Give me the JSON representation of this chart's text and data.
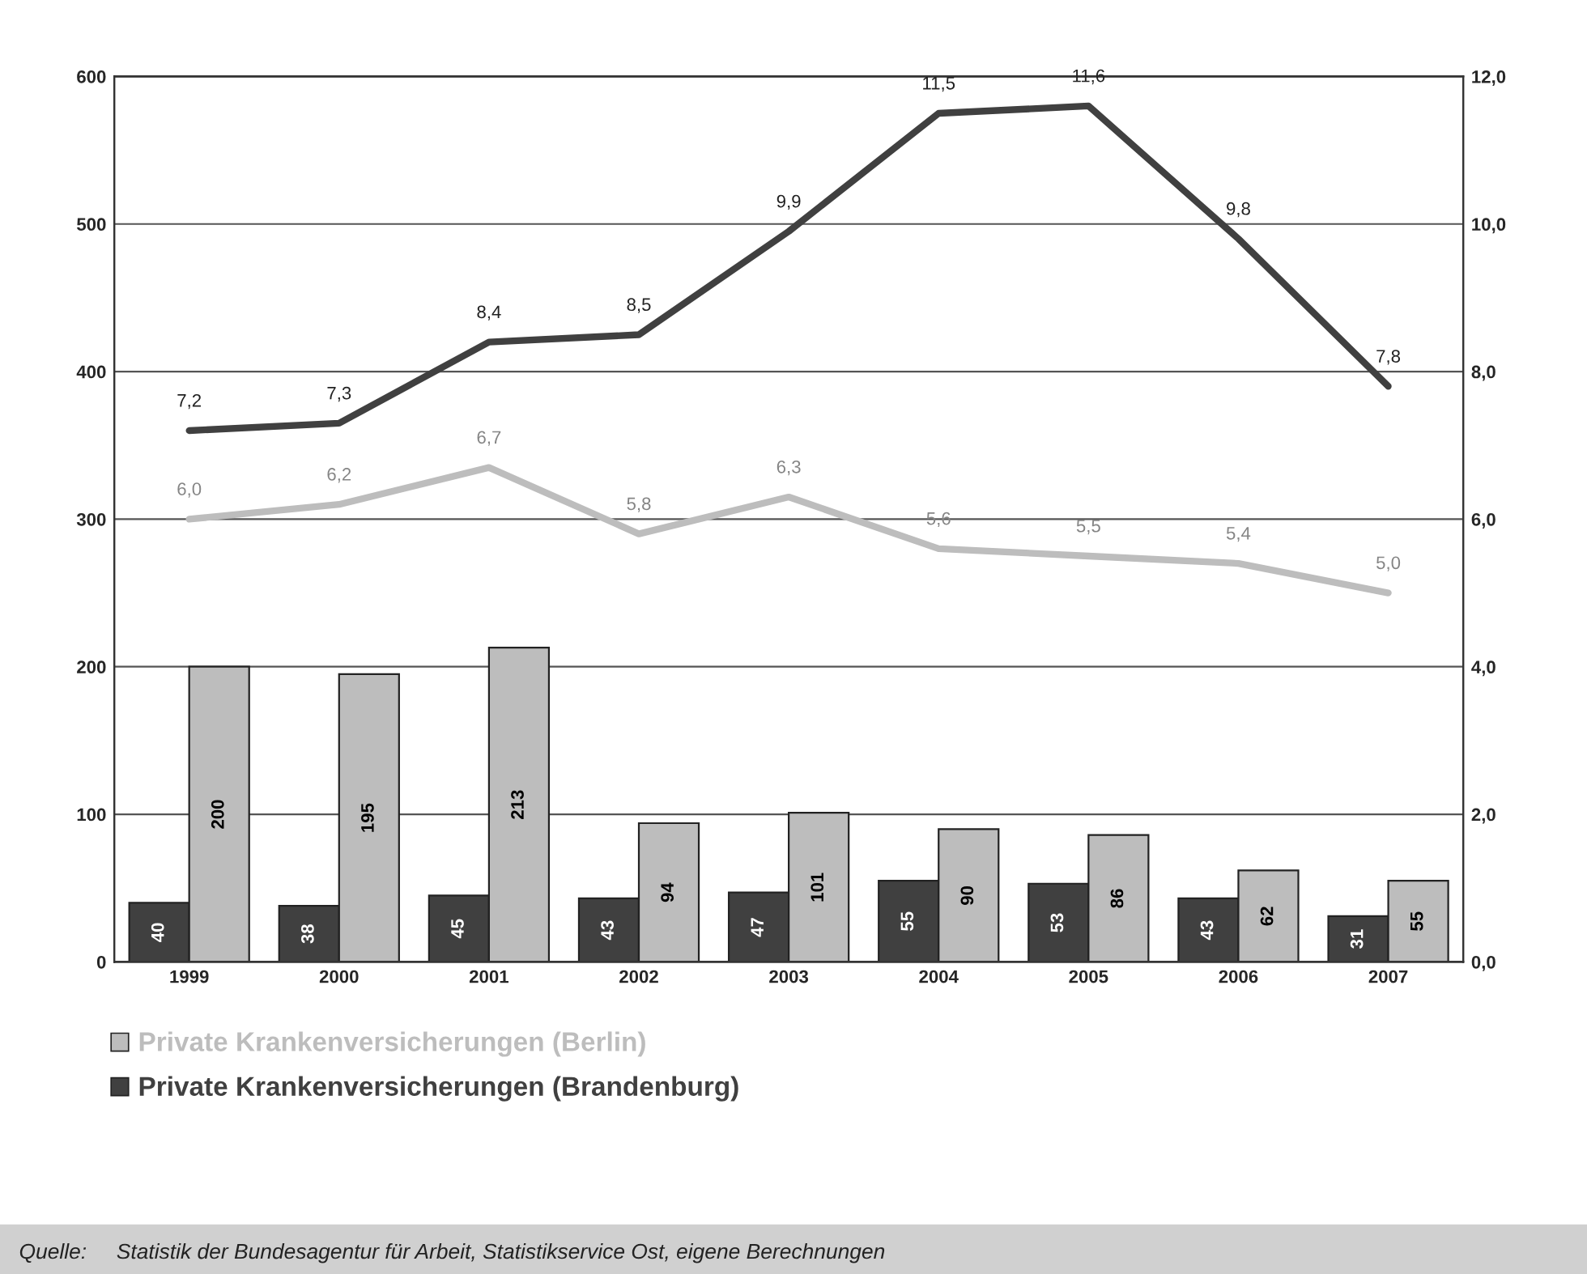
{
  "chart_data": {
    "type": "bar",
    "categories": [
      "1999",
      "2000",
      "2001",
      "2002",
      "2003",
      "2004",
      "2005",
      "2006",
      "2007"
    ],
    "series": [
      {
        "name": "Private Krankenversicherungen (Brandenburg)",
        "color": "#404040",
        "values": [
          40,
          38,
          45,
          43,
          47,
          55,
          53,
          43,
          31
        ],
        "value_labels": [
          "40",
          "38",
          "45",
          "43",
          "47",
          "55",
          "53",
          "43",
          "31"
        ]
      },
      {
        "name": "Private Krankenversicherungen (Berlin)",
        "color": "#bdbdbd",
        "values": [
          200,
          195,
          213,
          94,
          101,
          90,
          86,
          62,
          55
        ],
        "value_labels": [
          "200",
          "195",
          "213",
          "94",
          "101",
          "90",
          "86",
          "62",
          "55"
        ]
      },
      {
        "type": "line",
        "axis": "y2",
        "color": "#404040",
        "values": [
          7.2,
          7.3,
          8.4,
          8.5,
          9.9,
          11.5,
          11.6,
          9.8,
          7.8
        ],
        "value_labels": [
          "7,2",
          "7,3",
          "8,4",
          "8,5",
          "9,9",
          "11,5",
          "11,6",
          "9,8",
          "7,8"
        ]
      },
      {
        "type": "line",
        "axis": "y2",
        "color": "#bdbdbd",
        "values": [
          6.0,
          6.2,
          6.7,
          5.8,
          6.3,
          5.6,
          5.5,
          5.4,
          5.0
        ],
        "value_labels": [
          "6,0",
          "6,2",
          "6,7",
          "5,8",
          "6,3",
          "5,6",
          "5,5",
          "5,4",
          "5,0"
        ]
      }
    ],
    "ylim": [
      0,
      600
    ],
    "yticks": [
      0,
      100,
      200,
      300,
      400,
      500,
      600
    ],
    "y2lim": [
      0,
      12
    ],
    "y2ticks": [
      {
        "value": 0,
        "label": "0,0"
      },
      {
        "value": 2,
        "label": "2,0"
      },
      {
        "value": 4,
        "label": "4,0"
      },
      {
        "value": 6,
        "label": "6,0"
      },
      {
        "value": 8,
        "label": "8,0"
      },
      {
        "value": 10,
        "label": "10,0"
      },
      {
        "value": 12,
        "label": "12,0"
      }
    ],
    "grid": "y",
    "legend": "bottom",
    "line_style": "solid",
    "annotations": [
      "Quelle:     Statistik der Bundesagentur für Arbeit, Statistikservice Ost, eigene Berechnungen"
    ]
  }
}
